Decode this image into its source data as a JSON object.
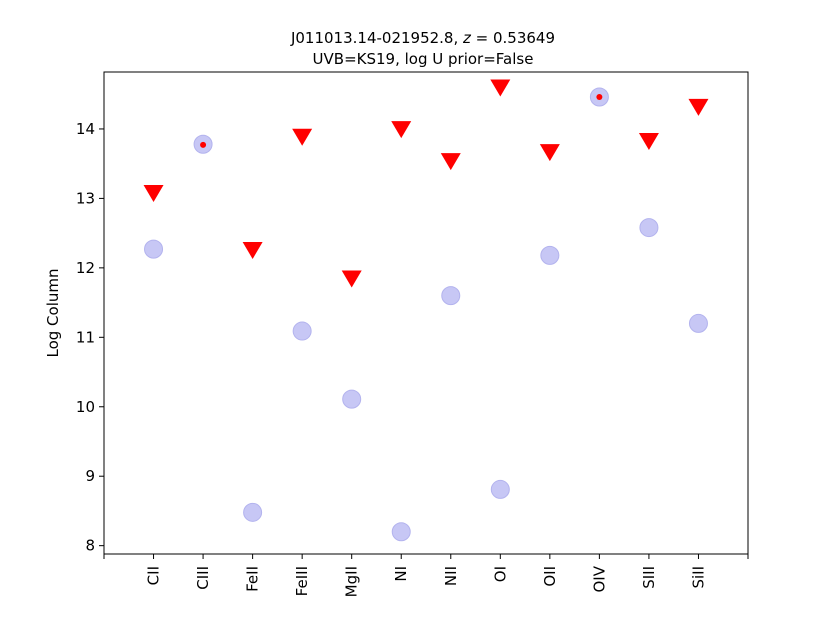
{
  "chart_data": {
    "type": "scatter",
    "title_line1": "J011013.14-021952.8, z = 0.53649",
    "title_prefix": "J011013.14-021952.8, ",
    "title_z": "z",
    "title_suffix": " = 0.53649",
    "title_line2": "UVB=KS19, log U prior=False",
    "xlabel": "",
    "ylabel": "Log Column",
    "categories": [
      "CII",
      "CIII",
      "FeII",
      "FeIII",
      "MgII",
      "NI",
      "NII",
      "OI",
      "OII",
      "OIV",
      "SIII",
      "SiII"
    ],
    "ylim": [
      7.88,
      14.82
    ],
    "yticks": [
      8,
      9,
      10,
      11,
      12,
      13,
      14
    ],
    "grid": false,
    "series": [
      {
        "marker": "circle",
        "color": "#c7c7f5",
        "values": [
          12.27,
          13.78,
          8.48,
          11.09,
          10.11,
          8.2,
          11.6,
          8.81,
          12.18,
          14.46,
          12.58,
          11.2
        ]
      },
      {
        "marker": "triangle-down",
        "color": "#ff0000",
        "values": [
          13.07,
          null,
          12.25,
          13.88,
          11.84,
          13.99,
          13.53,
          14.59,
          13.66,
          null,
          13.82,
          14.31
        ]
      },
      {
        "marker": "dot",
        "color": "#ff0000",
        "values": [
          null,
          13.77,
          null,
          null,
          null,
          null,
          null,
          null,
          null,
          14.46,
          null,
          null
        ]
      }
    ]
  }
}
